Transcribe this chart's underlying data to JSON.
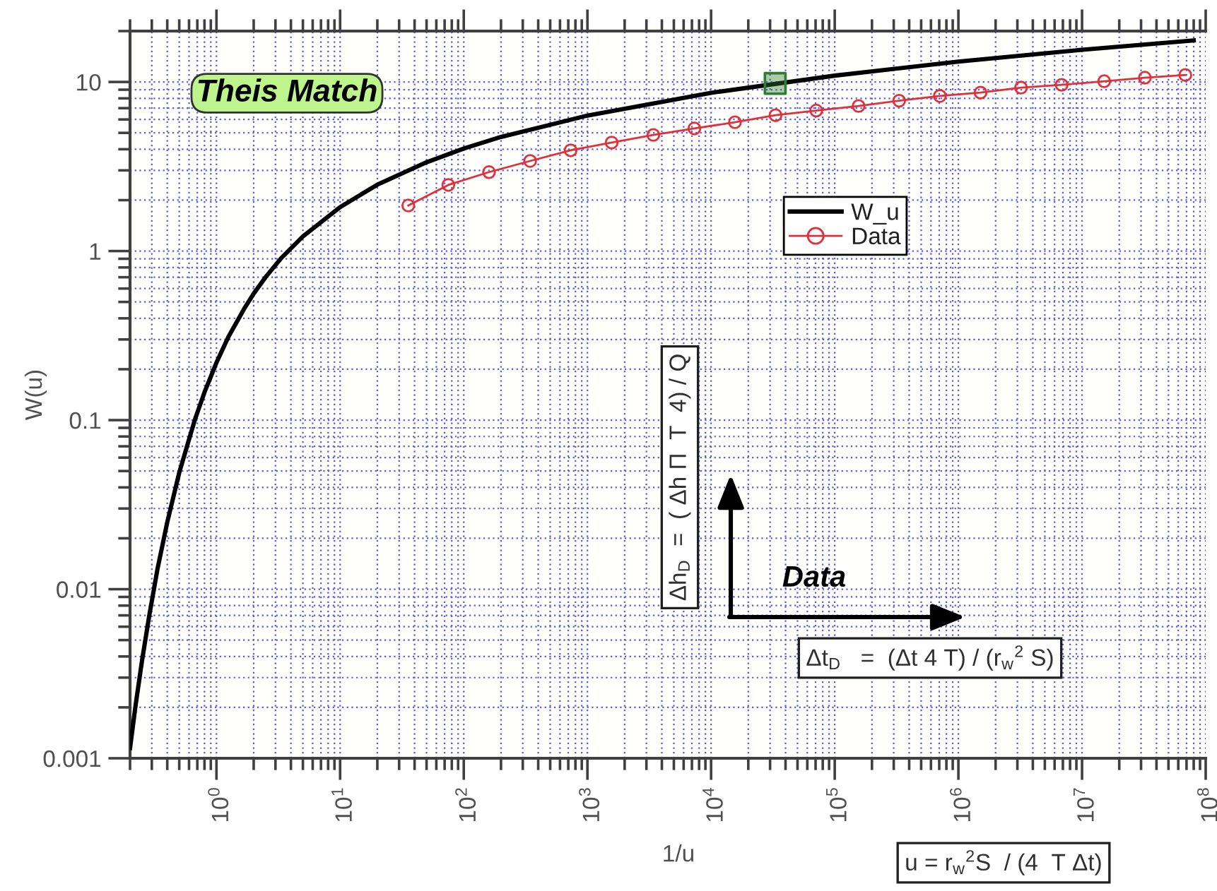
{
  "chart_data": {
    "type": "line",
    "xlabel": "1/u",
    "ylabel": "W(u)",
    "log": "xy",
    "xlim": [
      0.2,
      100000000
    ],
    "ylim": [
      0.001,
      20
    ],
    "xticks": [
      {
        "value": 1,
        "label": "10$^{0}$"
      },
      {
        "value": 10,
        "label": "10$^{1}$"
      },
      {
        "value": 100,
        "label": "10$^{2}$"
      },
      {
        "value": 1000,
        "label": "10$^{3}$"
      },
      {
        "value": 10000,
        "label": "10$^{4}$"
      },
      {
        "value": 100000,
        "label": "10$^{5}$"
      },
      {
        "value": 1000000,
        "label": "10$^{6}$"
      },
      {
        "value": 10000000,
        "label": "10$^{7}$"
      },
      {
        "value": 100000000,
        "label": "10$^{8}$"
      }
    ],
    "yticks": [
      0.001,
      0.01,
      0.1,
      1,
      10
    ],
    "grid": true,
    "legend": "top right",
    "series": [
      {
        "name": "W_u",
        "color": "#000000",
        "marker": "none",
        "x": [
          0.2,
          0.222,
          0.25,
          0.286,
          0.333,
          0.4,
          0.5,
          0.667,
          0.8,
          1,
          1.25,
          1.67,
          2,
          2.5,
          3.33,
          5,
          10,
          20,
          50,
          100,
          200,
          1000,
          10000,
          100000,
          1000000,
          10000000,
          80000000
        ],
        "values": [
          0.00115,
          0.00207,
          0.00378,
          0.00697,
          0.0131,
          0.0249,
          0.0489,
          0.1,
          0.146,
          0.219,
          0.311,
          0.454,
          0.56,
          0.702,
          0.906,
          1.22,
          1.82,
          2.47,
          3.35,
          4.04,
          4.73,
          6.33,
          8.63,
          10.9,
          13.2,
          15.5,
          17.6
        ]
      },
      {
        "name": "Data",
        "color": "#e0303a",
        "marker": "circle",
        "x": [
          35.6,
          75,
          160,
          344,
          731,
          1570,
          3410,
          7330,
          15600,
          33200,
          70800,
          156000,
          332000,
          708000,
          1510000,
          3210000,
          6840000,
          15100000,
          32200000,
          68400000
        ],
        "values": [
          1.86,
          2.46,
          2.93,
          3.41,
          3.94,
          4.38,
          4.86,
          5.31,
          5.78,
          6.36,
          6.78,
          7.21,
          7.75,
          8.26,
          8.65,
          9.26,
          9.62,
          10.1,
          10.6,
          11.0
        ]
      },
      {
        "type": "scatter",
        "color": "#2e7d32",
        "marker": "square",
        "x": [
          33000
        ],
        "values": [
          9.8
        ]
      }
    ],
    "annotations": [
      "Theis Match",
      "Δh$_{D}$  =  ( Δh Π  T  4) / Q",
      "Data",
      "Δt$_{D}$   =  (Δt 4 T) / (r$_{w}$$^{2}$ S)",
      "u = r$_{w}$$^{2}$S  / (4  T Δt)"
    ]
  }
}
